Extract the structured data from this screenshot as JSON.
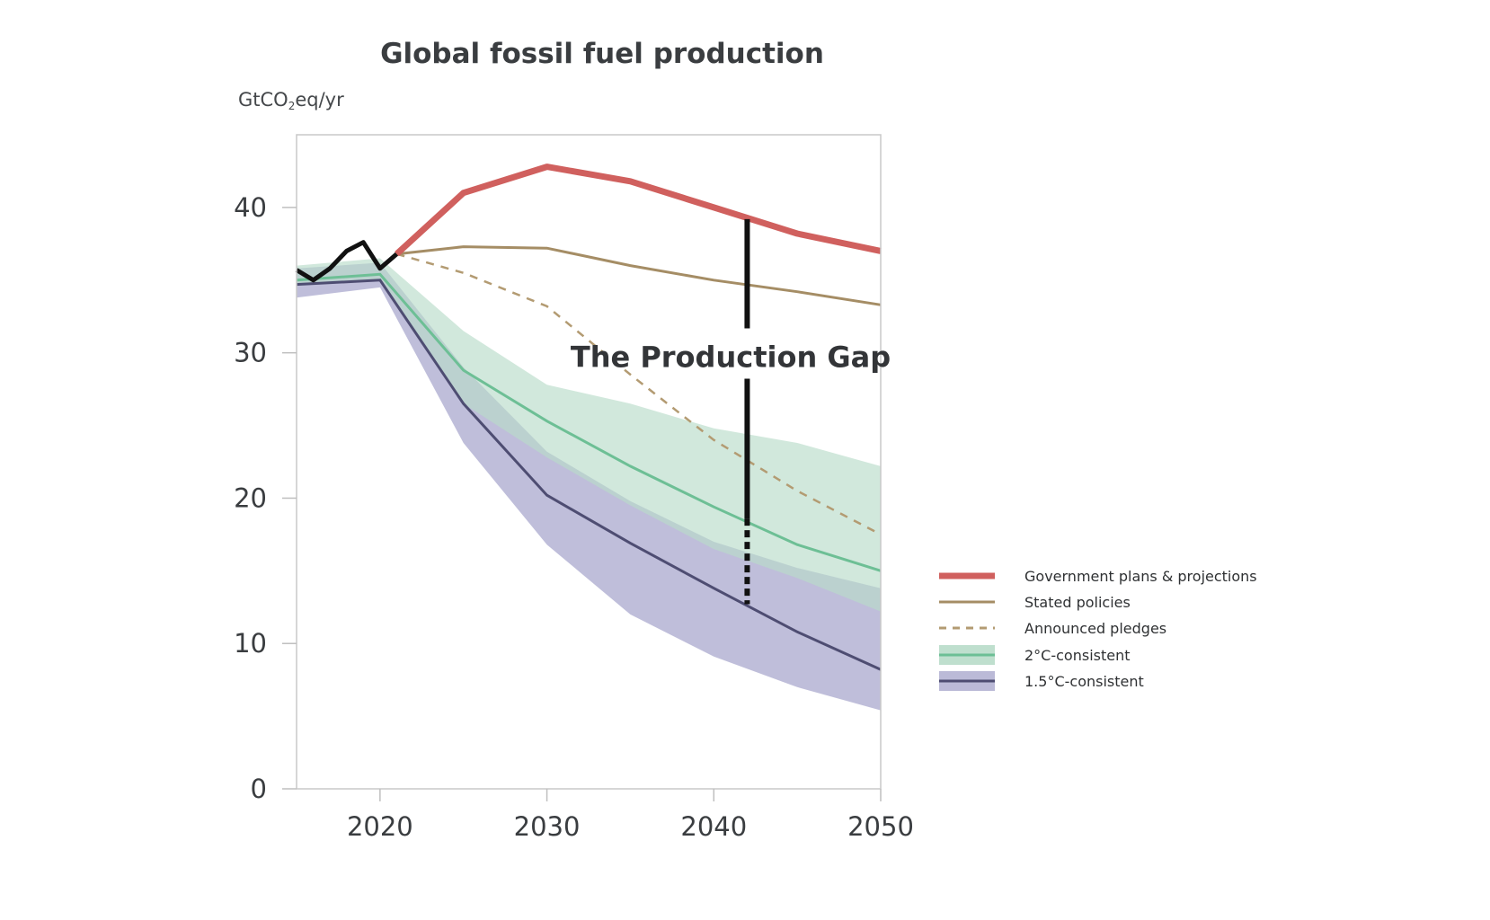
{
  "chart_data": {
    "type": "line",
    "title": "Global fossil fuel production",
    "ylabel": "GtCO",
    "ylabel_sub": "2",
    "ylabel_suffix": "eq/yr",
    "xlim": [
      2015,
      2050
    ],
    "ylim": [
      0,
      45
    ],
    "xticks": [
      2020,
      2030,
      2040,
      2050
    ],
    "yticks": [
      0,
      10,
      20,
      30,
      40
    ],
    "grid": false,
    "legend_position": "right",
    "annotation": "The Production Gap",
    "gap_marker": {
      "x": 2042,
      "top": 39.2,
      "bottom": 12.7
    },
    "colors": {
      "government": "#d0605e",
      "stated": "#a58d65",
      "pledges": "#b39b72",
      "two_c_line": "#6dbf95",
      "two_c_band": "#b8dcc9",
      "one_five_line": "#4e4d72",
      "one_five_band": "#b4b3d3",
      "historical": "#111111",
      "gap": "#111111"
    },
    "historical": {
      "x": [
        2015,
        2016,
        2017,
        2018,
        2019,
        2020,
        2021
      ],
      "y": [
        35.7,
        35.0,
        35.8,
        37.0,
        37.6,
        35.8,
        36.8
      ]
    },
    "series": [
      {
        "key": "government",
        "name": "Government plans & projections",
        "style": "thick",
        "x": [
          2021,
          2025,
          2030,
          2035,
          2040,
          2045,
          2050
        ],
        "y": [
          36.8,
          41.0,
          42.8,
          41.8,
          40.0,
          38.2,
          37.0
        ]
      },
      {
        "key": "stated",
        "name": "Stated policies",
        "style": "thin",
        "x": [
          2021,
          2025,
          2030,
          2035,
          2040,
          2045,
          2050
        ],
        "y": [
          36.8,
          37.3,
          37.2,
          36.0,
          35.0,
          34.2,
          33.3
        ]
      },
      {
        "key": "pledges",
        "name": "Announced pledges",
        "style": "dashed",
        "x": [
          2021,
          2025,
          2030,
          2035,
          2040,
          2045,
          2050
        ],
        "y": [
          36.8,
          35.5,
          33.2,
          28.5,
          24.0,
          20.5,
          17.5
        ]
      },
      {
        "key": "two_c",
        "name": "2°C-consistent",
        "style": "band",
        "x": [
          2015,
          2020,
          2025,
          2030,
          2035,
          2040,
          2045,
          2050
        ],
        "y": [
          35.0,
          35.4,
          28.8,
          25.3,
          22.2,
          19.4,
          16.8,
          15.0
        ],
        "upper": [
          36.0,
          36.5,
          31.5,
          27.8,
          26.5,
          24.8,
          23.8,
          22.2
        ],
        "lower": [
          34.6,
          35.0,
          26.5,
          22.8,
          19.5,
          16.5,
          14.5,
          12.2
        ]
      },
      {
        "key": "one_five",
        "name": "1.5°C-consistent",
        "style": "band",
        "x": [
          2015,
          2020,
          2025,
          2030,
          2035,
          2040,
          2045,
          2050
        ],
        "y": [
          34.7,
          35.0,
          26.5,
          20.2,
          16.9,
          13.8,
          10.8,
          8.2
        ],
        "upper": [
          35.8,
          36.2,
          29.0,
          23.2,
          19.8,
          17.0,
          15.2,
          13.8
        ],
        "lower": [
          33.8,
          34.5,
          23.8,
          16.8,
          12.0,
          9.1,
          7.0,
          5.4
        ]
      }
    ]
  }
}
